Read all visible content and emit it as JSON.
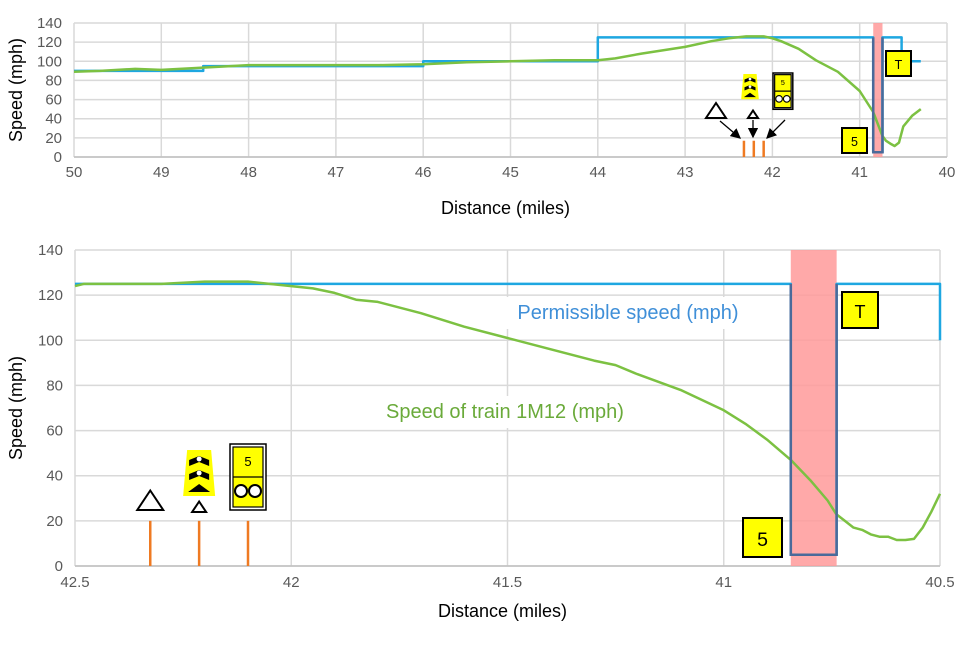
{
  "colors": {
    "permissible": "#1ea7e1",
    "train": "#7cc142",
    "band": "#ff9a9a",
    "restriction": "#4a6a9a",
    "marker": "#ef7a22",
    "sign": "#ffff00",
    "grid": "#d9d9d9"
  },
  "chart_data": [
    {
      "type": "line",
      "xlabel": "Distance (miles)",
      "ylabel": "Speed (mph)",
      "xlim": [
        50,
        40
      ],
      "ylim": [
        0,
        140
      ],
      "x_reversed": true,
      "xticks": [
        "50",
        "49",
        "48",
        "47",
        "46",
        "45",
        "44",
        "43",
        "42",
        "41",
        "40"
      ],
      "yticks": [
        "0",
        "20",
        "40",
        "60",
        "80",
        "100",
        "120",
        "140"
      ],
      "grid": true,
      "series": [
        {
          "key": "permissible",
          "x": [
            50,
            48.52,
            48.52,
            46,
            46,
            44,
            44,
            40.845,
            40.845,
            40.739,
            40.739,
            40.52,
            40.52,
            40.3
          ],
          "y": [
            90,
            90,
            95,
            95,
            100,
            100,
            125,
            125,
            5,
            5,
            125,
            125,
            100,
            100
          ]
        },
        {
          "key": "train",
          "x": [
            50,
            49.7,
            49.3,
            49,
            48.6,
            48,
            47.5,
            47,
            46.5,
            46,
            45.5,
            45,
            44.5,
            44,
            43.8,
            43.5,
            43,
            42.7,
            42.5,
            42.3,
            42.1,
            42,
            41.9,
            41.7,
            41.5,
            41.25,
            41,
            40.845,
            40.74,
            40.7,
            40.65,
            40.6,
            40.55,
            40.5,
            40.4,
            40.3
          ],
          "y": [
            89,
            90,
            92,
            91,
            93,
            96,
            96,
            96,
            96,
            97,
            99,
            100,
            101,
            101,
            103,
            108,
            115,
            121,
            124,
            126,
            126,
            124,
            121,
            113,
            101,
            89,
            69,
            47,
            22,
            17,
            14,
            11.5,
            15,
            32,
            43,
            50
          ]
        }
      ],
      "band": [
        40.845,
        40.739
      ],
      "markers": [
        42.326,
        42.213,
        42.1
      ],
      "annotations": {
        "signs": [
          "aws-triangle-icon",
          "warning-board-icon",
          "aws-small-triangle-icon",
          "tpws-5-sign-icon"
        ],
        "restriction_box": "5",
        "termination_box": "T"
      }
    },
    {
      "type": "line",
      "xlabel": "Distance (miles)",
      "ylabel": "Speed (mph)",
      "xlim": [
        42.5,
        40.5
      ],
      "ylim": [
        0,
        140
      ],
      "x_reversed": true,
      "xticks": [
        "42.5",
        "42",
        "41.5",
        "41",
        "40.5"
      ],
      "yticks": [
        "0",
        "20",
        "40",
        "60",
        "80",
        "100",
        "120",
        "140"
      ],
      "grid": true,
      "series": [
        {
          "key": "permissible",
          "name": "Permissible speed (mph)",
          "x": [
            42.5,
            40.845,
            40.845,
            40.739,
            40.739,
            40.5,
            40.5
          ],
          "y": [
            125,
            125,
            5,
            5,
            125,
            125,
            100
          ]
        },
        {
          "key": "train",
          "name": "Speed of train 1M12 (mph)",
          "x": [
            42.5,
            42.48,
            42.4,
            42.3,
            42.2,
            42.1,
            42.05,
            42,
            41.95,
            41.9,
            41.85,
            41.8,
            41.7,
            41.6,
            41.5,
            41.4,
            41.3,
            41.25,
            41.2,
            41.1,
            41,
            40.95,
            40.9,
            40.845,
            40.8,
            40.76,
            40.74,
            40.72,
            40.7,
            40.68,
            40.66,
            40.64,
            40.62,
            40.6,
            40.58,
            40.56,
            40.54,
            40.52,
            40.5
          ],
          "y": [
            124,
            125,
            125,
            125,
            126,
            126,
            125,
            124,
            123,
            121,
            118,
            117,
            112,
            106,
            101,
            96,
            91,
            89,
            85,
            78,
            69,
            63,
            56,
            47,
            38,
            29,
            23,
            20,
            17,
            16,
            14,
            13,
            13,
            11.5,
            11.5,
            12,
            17,
            24,
            32
          ]
        }
      ],
      "band": [
        40.845,
        40.739
      ],
      "markers": [
        42.326,
        42.213,
        42.1
      ],
      "annotations": {
        "signs": [
          "aws-triangle-icon",
          "warning-board-icon",
          "aws-small-triangle-icon",
          "tpws-5-sign-icon"
        ],
        "restriction_box": "5",
        "termination_box": "T"
      }
    }
  ]
}
